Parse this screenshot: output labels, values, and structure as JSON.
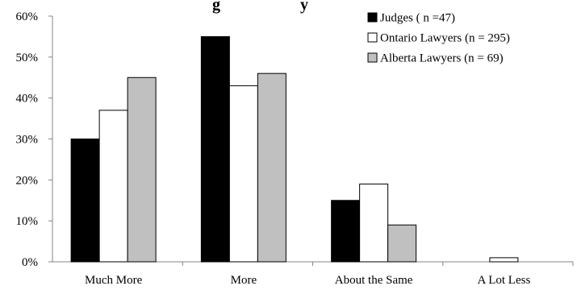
{
  "chart_data": {
    "type": "bar",
    "title": "",
    "title_fragment": "g… y…",
    "categories": [
      "Much More",
      "More",
      "About the Same",
      "A Lot Less"
    ],
    "series": [
      {
        "name": "Judges ( n =47)",
        "color": "#000000",
        "values": [
          30,
          55,
          15,
          0
        ]
      },
      {
        "name": "Ontario Lawyers (n = 295)",
        "color": "#ffffff",
        "values": [
          37,
          43,
          19,
          1
        ]
      },
      {
        "name": "Alberta Lawyers (n = 69)",
        "color": "#c0c0c0",
        "values": [
          45,
          46,
          9,
          0
        ]
      }
    ],
    "yticks": [
      "0%",
      "10%",
      "20%",
      "30%",
      "40%",
      "50%",
      "60%"
    ],
    "ylim": [
      0,
      60
    ],
    "ylabel": "",
    "xlabel": "",
    "grid": false,
    "legend_position": "top-right"
  }
}
